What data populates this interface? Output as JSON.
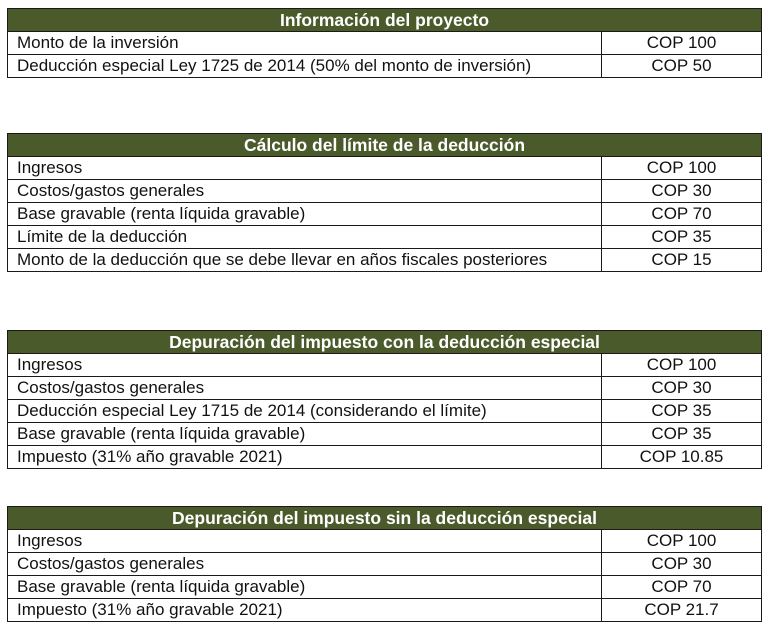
{
  "tables": [
    {
      "title": "Información del proyecto",
      "rows": [
        {
          "label": "Monto de la inversión",
          "value": "COP 100"
        },
        {
          "label": "Deducción especial Ley 1725 de 2014 (50% del monto de inversión)",
          "value": "COP 50"
        }
      ]
    },
    {
      "title": "Cálculo del límite de la deducción",
      "rows": [
        {
          "label": "Ingresos",
          "value": "COP 100"
        },
        {
          "label": "Costos/gastos generales",
          "value": "COP 30"
        },
        {
          "label": "Base gravable (renta líquida gravable)",
          "value": "COP 70"
        },
        {
          "label": "Límite de la deducción",
          "value": "COP 35"
        },
        {
          "label": "Monto de la deducción que se debe llevar en años fiscales posteriores",
          "value": "COP 15"
        }
      ]
    },
    {
      "title": "Depuración del impuesto con la deducción especial",
      "rows": [
        {
          "label": "Ingresos",
          "value": "COP 100"
        },
        {
          "label": "Costos/gastos generales",
          "value": "COP 30"
        },
        {
          "label": "Deducción especial Ley 1715 de 2014 (considerando el límite)",
          "value": "COP 35"
        },
        {
          "label": "Base gravable (renta líquida gravable)",
          "value": "COP 35"
        },
        {
          "label": "Impuesto (31% año gravable 2021)",
          "value": "COP 10.85"
        }
      ]
    },
    {
      "title": "Depuración del impuesto sin la deducción especial",
      "rows": [
        {
          "label": "Ingresos",
          "value": "COP 100"
        },
        {
          "label": "Costos/gastos generales",
          "value": "COP 30"
        },
        {
          "label": "Base gravable (renta líquida gravable)",
          "value": "COP 70"
        },
        {
          "label": "Impuesto (31% año gravable 2021)",
          "value": "COP 21.7"
        }
      ]
    }
  ],
  "colors": {
    "header_background": "#4a5a2a",
    "header_text": "#ffffff",
    "border": "#1a1a1a"
  }
}
